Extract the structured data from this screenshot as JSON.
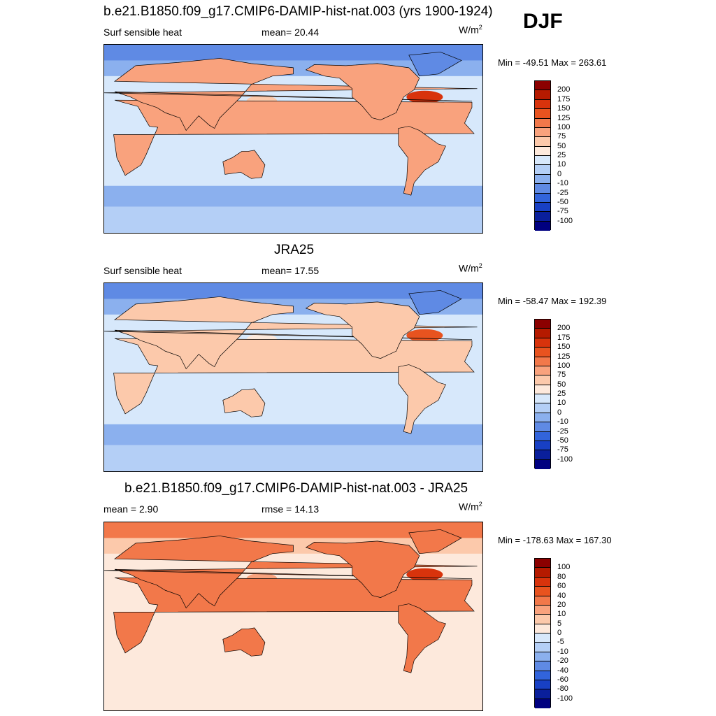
{
  "season": "DJF",
  "panels": [
    {
      "title": "b.e21.B1850.f09_g17.CMIP6-DAMIP-hist-nat.003 (yrs 1900-1924)",
      "left_label": "Surf sensible heat",
      "center_label": "mean=  20.44",
      "units": "W/m",
      "units_sup": "2",
      "minmax": "Min = -49.51 Max = 263.61"
    },
    {
      "title": "JRA25",
      "left_label": "Surf sensible heat",
      "center_label": "mean=  17.55",
      "units": "W/m",
      "units_sup": "2",
      "minmax": "Min = -58.47 Max = 192.39"
    },
    {
      "title": "b.e21.B1850.f09_g17.CMIP6-DAMIP-hist-nat.003 - JRA25",
      "left_label": "mean =   2.90",
      "center_label": "rmse =  14.13",
      "units": "W/m",
      "units_sup": "2",
      "minmax": "Min = -178.63 Max = 167.30"
    }
  ],
  "chart_data": [
    {
      "type": "heatmap",
      "title": "b.e21.B1850.f09_g17.CMIP6-DAMIP-hist-nat.003 (yrs 1900-1924)",
      "variable": "Surf sensible heat",
      "mean": 20.44,
      "min": -49.51,
      "max": 263.61,
      "colorbar_levels": [
        200,
        175,
        150,
        125,
        100,
        75,
        50,
        25,
        10,
        0,
        -10,
        -25,
        -50,
        -75,
        -100
      ],
      "colorbar_colors": [
        "#8b0000",
        "#b51a00",
        "#d8330c",
        "#e8531f",
        "#f2784a",
        "#f9a27d",
        "#fcc9ab",
        "#fde9dc",
        "#d7e8fb",
        "#b4cff6",
        "#8bb0ee",
        "#5f8ae4",
        "#3264db",
        "#1840c4",
        "#0a1f9b",
        "#000080"
      ]
    },
    {
      "type": "heatmap",
      "title": "JRA25",
      "variable": "Surf sensible heat",
      "mean": 17.55,
      "min": -58.47,
      "max": 192.39,
      "colorbar_levels": [
        200,
        175,
        150,
        125,
        100,
        75,
        50,
        25,
        10,
        0,
        -10,
        -25,
        -50,
        -75,
        -100
      ],
      "colorbar_colors": [
        "#8b0000",
        "#b51a00",
        "#d8330c",
        "#e8531f",
        "#f2784a",
        "#f9a27d",
        "#fcc9ab",
        "#fde9dc",
        "#d7e8fb",
        "#b4cff6",
        "#8bb0ee",
        "#5f8ae4",
        "#3264db",
        "#1840c4",
        "#0a1f9b",
        "#000080"
      ]
    },
    {
      "type": "heatmap",
      "title": "b.e21.B1850.f09_g17.CMIP6-DAMIP-hist-nat.003 - JRA25",
      "mean": 2.9,
      "rmse": 14.13,
      "min": -178.63,
      "max": 167.3,
      "colorbar_levels": [
        100,
        80,
        60,
        40,
        20,
        10,
        5,
        0,
        -5,
        -10,
        -20,
        -40,
        -60,
        -80,
        -100
      ],
      "colorbar_colors": [
        "#8b0000",
        "#b51a00",
        "#d8330c",
        "#e8531f",
        "#f2784a",
        "#f9a27d",
        "#fcc9ab",
        "#fde9dc",
        "#d7e8fb",
        "#b4cff6",
        "#8bb0ee",
        "#5f8ae4",
        "#3264db",
        "#1840c4",
        "#0a1f9b",
        "#000080"
      ]
    }
  ]
}
